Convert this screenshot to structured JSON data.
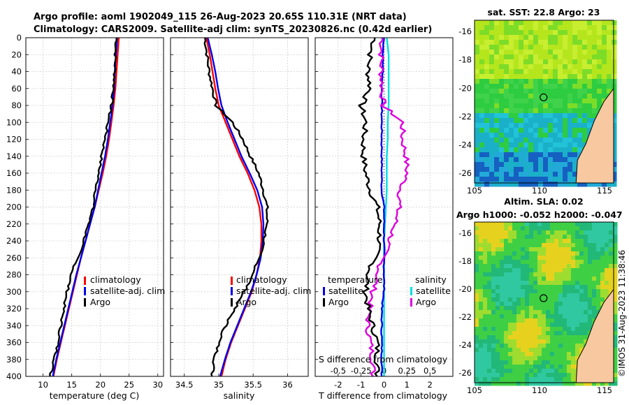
{
  "header": {
    "title_line1": "Argo profile: aoml 1902049_115 26-Aug-2023 20.65S 110.31E (NRT data)",
    "title_line2": "Climatology: CARS2009. Satellite-adj clim: synTS_20230826.nc (0.42d earlier)"
  },
  "colors": {
    "climatology": "#ff0000",
    "satellite": "#0000ee",
    "argo": "#000000",
    "satellite_salinity": "#00dddd",
    "argo_salinity": "#dd00dd",
    "land": "#f8c8a0"
  },
  "depth_ticks": [
    "0",
    "20",
    "40",
    "60",
    "80",
    "100",
    "120",
    "140",
    "160",
    "180",
    "200",
    "220",
    "240",
    "260",
    "280",
    "300",
    "320",
    "340",
    "360",
    "380",
    "400"
  ],
  "chart_data": [
    {
      "type": "line",
      "panel": "temperature",
      "xlabel": "temperature (deg C)",
      "ylabel": "depth",
      "xlim": [
        7,
        31
      ],
      "ylim": [
        400,
        0
      ],
      "xticks": [
        "10",
        "15",
        "20",
        "25",
        "30"
      ],
      "legend": [
        "climatology",
        "satellite-adj. clim",
        "Argo"
      ],
      "depth": [
        0,
        20,
        40,
        60,
        80,
        100,
        120,
        140,
        160,
        180,
        200,
        220,
        240,
        260,
        280,
        300,
        320,
        340,
        360,
        380,
        400
      ],
      "series": [
        {
          "name": "climatology",
          "values": [
            23.2,
            23.0,
            22.8,
            22.6,
            22.3,
            21.9,
            21.5,
            21.0,
            20.4,
            19.7,
            19.0,
            18.2,
            17.4,
            16.6,
            15.9,
            15.2,
            14.5,
            13.8,
            13.1,
            12.4,
            11.8
          ]
        },
        {
          "name": "satellite-adj. clim",
          "values": [
            22.9,
            22.7,
            22.5,
            22.4,
            22.1,
            21.7,
            21.3,
            20.8,
            20.2,
            19.6,
            19.0,
            18.2,
            17.4,
            16.6,
            15.8,
            15.1,
            14.4,
            13.7,
            13.0,
            12.3,
            11.7
          ]
        },
        {
          "name": "Argo",
          "values": [
            22.8,
            22.6,
            22.5,
            22.3,
            21.9,
            21.3,
            20.8,
            20.2,
            19.7,
            19.2,
            18.7,
            17.9,
            17.1,
            16.0,
            14.9,
            14.2,
            13.6,
            13.1,
            12.6,
            12.0,
            11.2
          ]
        }
      ]
    },
    {
      "type": "line",
      "panel": "salinity",
      "xlabel": "salinity",
      "ylabel": "depth",
      "xlim": [
        34.3,
        36.3
      ],
      "ylim": [
        400,
        0
      ],
      "xticks": [
        "34.5",
        "35",
        "35.5",
        "36"
      ],
      "legend": [
        "climatology",
        "satellite-adj. clim",
        "Argo"
      ],
      "depth": [
        0,
        20,
        40,
        60,
        80,
        100,
        120,
        140,
        160,
        180,
        200,
        220,
        240,
        260,
        280,
        300,
        320,
        340,
        360,
        380,
        400
      ],
      "series": [
        {
          "name": "climatology",
          "values": [
            34.82,
            34.87,
            34.91,
            34.95,
            35.0,
            35.1,
            35.2,
            35.3,
            35.42,
            35.52,
            35.59,
            35.62,
            35.62,
            35.6,
            35.55,
            35.48,
            35.38,
            35.28,
            35.18,
            35.1,
            35.04
          ]
        },
        {
          "name": "satellite-adj. clim",
          "values": [
            34.84,
            34.9,
            34.95,
            34.99,
            35.04,
            35.13,
            35.23,
            35.33,
            35.45,
            35.56,
            35.63,
            35.65,
            35.64,
            35.61,
            35.55,
            35.47,
            35.37,
            35.27,
            35.17,
            35.09,
            35.02
          ]
        },
        {
          "name": "Argo",
          "values": [
            34.8,
            34.83,
            34.86,
            34.91,
            34.96,
            35.2,
            35.35,
            35.46,
            35.58,
            35.65,
            35.7,
            35.7,
            35.66,
            35.58,
            35.5,
            35.37,
            35.23,
            35.1,
            35.0,
            34.94,
            34.9
          ]
        }
      ]
    },
    {
      "type": "line",
      "panel": "differences",
      "xlabel": "T difference from climatology",
      "top_xlabel": "S difference from climatology",
      "xlim": [
        -3,
        3
      ],
      "ylim": [
        400,
        0
      ],
      "xticks": [
        "-2",
        "-1",
        "0",
        "1",
        "2"
      ],
      "top_xticks": [
        "-0.5",
        "-0.25",
        "0",
        "0.25",
        "0.5"
      ],
      "legend_temperature_title": "temperature",
      "legend_salinity_title": "salinity",
      "legend_temperature": [
        "satellite",
        "Argo"
      ],
      "legend_salinity": [
        "satellite",
        "Argo"
      ],
      "depth": [
        0,
        20,
        40,
        60,
        80,
        100,
        120,
        140,
        160,
        180,
        200,
        220,
        240,
        260,
        280,
        300,
        320,
        340,
        360,
        380,
        400
      ],
      "series": [
        {
          "name": "T satellite",
          "values": [
            0.0,
            -0.05,
            -0.05,
            -0.1,
            -0.1,
            -0.1,
            -0.1,
            -0.1,
            -0.1,
            -0.1,
            0.0,
            0.0,
            0.0,
            0.0,
            0.0,
            0.0,
            -0.1,
            -0.1,
            -0.1,
            -0.1,
            -0.1
          ]
        },
        {
          "name": "T Argo",
          "values": [
            -0.4,
            -0.6,
            -0.7,
            -0.6,
            -1.0,
            -0.8,
            -0.9,
            -0.9,
            -0.8,
            -0.6,
            -0.3,
            -0.2,
            -0.2,
            -0.4,
            -0.7,
            -0.8,
            -0.7,
            -0.5,
            -0.3,
            -0.3,
            -0.3
          ]
        },
        {
          "name": "S satellite",
          "values": [
            0.03,
            0.05,
            0.05,
            0.05,
            0.05,
            0.04,
            0.04,
            0.03,
            0.03,
            0.03,
            0.02,
            0.01,
            0.0,
            0.0,
            0.0,
            0.0,
            0.0,
            0.0,
            0.0,
            0.0,
            0.0
          ]
        },
        {
          "name": "S Argo",
          "values": [
            -0.02,
            -0.03,
            -0.03,
            -0.02,
            -0.01,
            0.2,
            0.2,
            0.24,
            0.25,
            0.18,
            0.16,
            0.12,
            0.06,
            -0.02,
            -0.07,
            -0.12,
            -0.16,
            -0.18,
            -0.15,
            -0.12,
            -0.12
          ]
        }
      ]
    }
  ],
  "maps": {
    "sst": {
      "title": "sat. SST: 22.8 Argo: 23",
      "xticks": [
        "105",
        "110",
        "115"
      ],
      "yticks": [
        "-16",
        "-18",
        "-20",
        "-22",
        "-24",
        "-26"
      ],
      "lon": [
        105,
        115.7
      ],
      "lat": [
        -15.2,
        -26.7
      ],
      "argo_lon": 110.31,
      "argo_lat": -20.65
    },
    "sla": {
      "title1": "Altim. SLA: 0.02",
      "title2": "Argo h1000: -0.052 h2000: -0.047",
      "xticks": [
        "105",
        "110",
        "115"
      ],
      "yticks": [
        "-16",
        "-18",
        "-20",
        "-22",
        "-24",
        "-26"
      ],
      "lon": [
        105,
        115.7
      ],
      "lat": [
        -15.2,
        -26.7
      ],
      "argo_lon": 110.31,
      "argo_lat": -20.65
    }
  },
  "side_label": "©IMOS 31-Aug-2023 11:38:46"
}
